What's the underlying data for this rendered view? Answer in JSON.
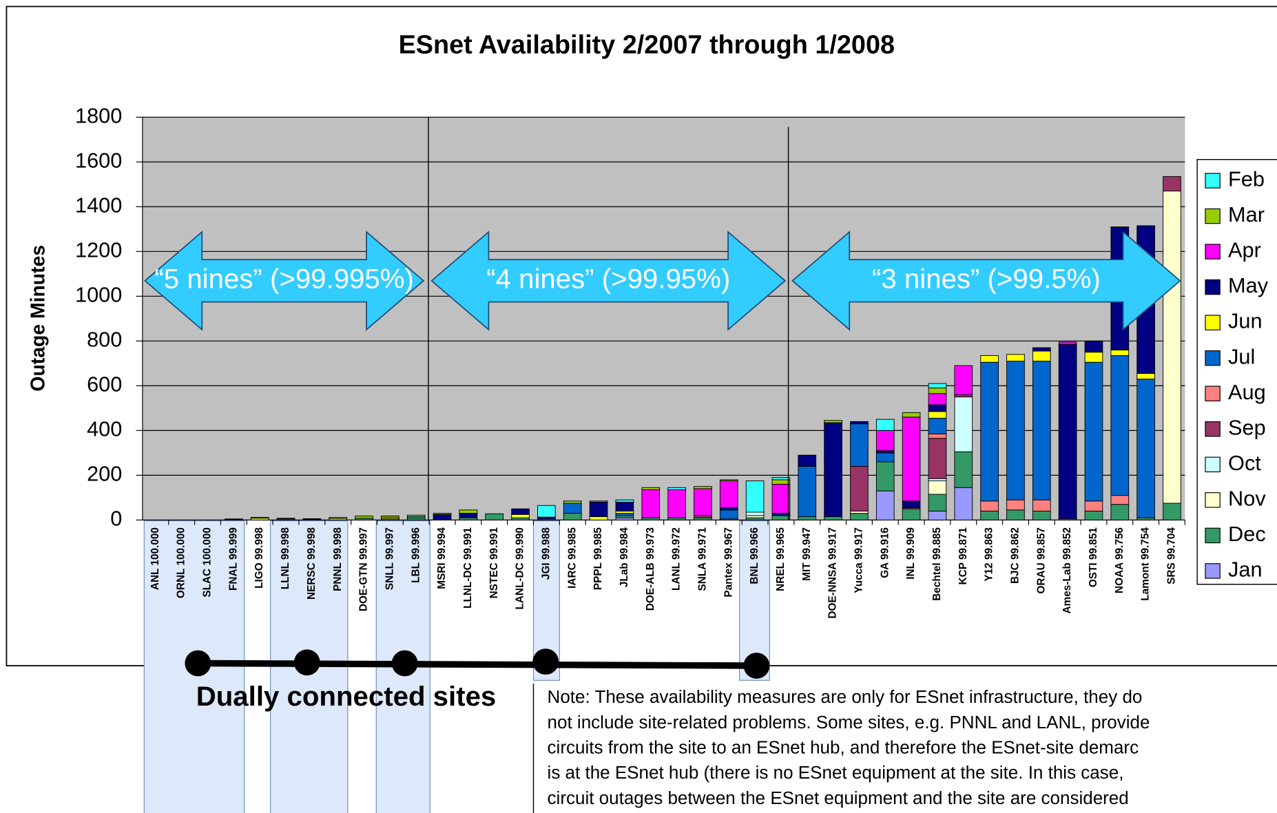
{
  "chart_data": {
    "type": "stacked_bar",
    "title": "ESnet Availability 2/2007 through 1/2008",
    "ylabel": "Outage Minutes",
    "ylim": [
      0,
      1800
    ],
    "yticks": [
      0,
      200,
      400,
      600,
      800,
      1000,
      1200,
      1400,
      1600,
      1800
    ],
    "grid": true,
    "legend": "right",
    "categories": [
      "ANL 100.000",
      "ORNL 100.000",
      "SLAC 100.000",
      "FNAL 99.999",
      "LIGO 99.998",
      "LLNL 99.998",
      "NERSC 99.998",
      "PNNL 99.998",
      "DOE-GTN 99.997",
      "SNLL 99.997",
      "LBL 99.996",
      "MSRI 99.994",
      "LLNL-DC 99.991",
      "NSTEC 99.991",
      "LANL-DC 99.990",
      "JGI 99.988",
      "IARC 99.985",
      "PPPL 99.985",
      "JLab 99.984",
      "DOE-ALB 99.973",
      "LANL 99.972",
      "SNLA 99.971",
      "Pantex 99.967",
      "BNL 99.966",
      "NREL 99.965",
      "MIT 99.947",
      "DOE-NNSA 99.917",
      "Yucca 99.917",
      "GA 99.916",
      "INL 99.909",
      "Bechtel 99.885",
      "KCP 99.871",
      "Y12 99.863",
      "BJC 99.862",
      "ORAU 99.857",
      "Ames-Lab 99.852",
      "OSTI 99.851",
      "NOAA 99.756",
      "Lamont 99.754",
      "SRS 99.704"
    ],
    "series": [
      {
        "name": "Feb",
        "color": "#33ffff",
        "values": [
          0,
          0,
          0,
          0,
          0,
          0,
          0,
          0,
          0,
          0,
          6,
          0,
          0,
          0,
          0,
          52,
          0,
          0,
          10,
          0,
          10,
          0,
          0,
          140,
          10,
          0,
          0,
          0,
          50,
          0,
          20,
          0,
          0,
          0,
          0,
          0,
          0,
          0,
          0,
          0
        ]
      },
      {
        "name": "Mar",
        "color": "#99cc00",
        "values": [
          0,
          0,
          0,
          3,
          4,
          3,
          3,
          6,
          10,
          6,
          6,
          5,
          15,
          0,
          0,
          0,
          10,
          5,
          0,
          10,
          0,
          10,
          5,
          0,
          20,
          0,
          10,
          0,
          0,
          20,
          25,
          0,
          0,
          0,
          0,
          0,
          0,
          0,
          0,
          0
        ]
      },
      {
        "name": "Apr",
        "color": "#ff00ff",
        "values": [
          0,
          0,
          0,
          0,
          0,
          0,
          0,
          0,
          0,
          0,
          0,
          0,
          0,
          0,
          0,
          0,
          0,
          0,
          0,
          125,
          125,
          120,
          120,
          0,
          130,
          0,
          0,
          0,
          90,
          375,
          50,
          130,
          0,
          0,
          0,
          10,
          0,
          0,
          0,
          0
        ]
      },
      {
        "name": "May",
        "color": "#000080",
        "values": [
          0,
          0,
          0,
          0,
          0,
          0,
          3,
          0,
          0,
          0,
          0,
          25,
          20,
          0,
          25,
          8,
          0,
          65,
          40,
          0,
          0,
          0,
          10,
          0,
          10,
          50,
          420,
          10,
          10,
          30,
          30,
          0,
          0,
          0,
          15,
          780,
          50,
          550,
          660,
          0
        ]
      },
      {
        "name": "Jun",
        "color": "#ffff00",
        "values": [
          0,
          0,
          0,
          0,
          8,
          0,
          0,
          6,
          0,
          6,
          0,
          0,
          0,
          0,
          15,
          0,
          0,
          15,
          10,
          0,
          0,
          0,
          0,
          0,
          0,
          0,
          0,
          0,
          0,
          0,
          30,
          0,
          30,
          30,
          45,
          0,
          45,
          25,
          25,
          0
        ]
      },
      {
        "name": "Jul",
        "color": "#0066cc",
        "values": [
          0,
          0,
          0,
          0,
          0,
          0,
          0,
          0,
          0,
          0,
          0,
          0,
          0,
          0,
          0,
          0,
          45,
          0,
          10,
          0,
          0,
          0,
          40,
          0,
          0,
          225,
          0,
          190,
          40,
          0,
          70,
          0,
          620,
          620,
          620,
          0,
          620,
          625,
          620,
          0
        ]
      },
      {
        "name": "Aug",
        "color": "#ff8080",
        "values": [
          0,
          0,
          0,
          0,
          0,
          0,
          0,
          0,
          0,
          0,
          0,
          0,
          0,
          0,
          0,
          0,
          0,
          0,
          0,
          0,
          0,
          0,
          0,
          0,
          0,
          0,
          0,
          0,
          0,
          0,
          20,
          0,
          45,
          45,
          50,
          5,
          45,
          40,
          0,
          0
        ]
      },
      {
        "name": "Sep",
        "color": "#993366",
        "values": [
          0,
          0,
          0,
          0,
          0,
          0,
          0,
          0,
          0,
          0,
          0,
          0,
          0,
          0,
          0,
          0,
          0,
          0,
          0,
          0,
          0,
          10,
          0,
          0,
          0,
          0,
          0,
          200,
          0,
          5,
          180,
          10,
          0,
          0,
          0,
          0,
          0,
          0,
          0,
          65
        ]
      },
      {
        "name": "Oct",
        "color": "#ccffff",
        "values": [
          0,
          0,
          0,
          0,
          0,
          0,
          0,
          0,
          0,
          0,
          0,
          0,
          0,
          0,
          0,
          0,
          0,
          0,
          0,
          0,
          0,
          0,
          0,
          15,
          0,
          0,
          0,
          0,
          0,
          0,
          10,
          245,
          0,
          0,
          0,
          0,
          0,
          0,
          0,
          0
        ]
      },
      {
        "name": "Nov",
        "color": "#ffffcc",
        "values": [
          0,
          0,
          0,
          0,
          0,
          0,
          0,
          0,
          0,
          0,
          0,
          0,
          0,
          0,
          0,
          0,
          0,
          0,
          0,
          0,
          0,
          0,
          0,
          10,
          0,
          0,
          0,
          10,
          0,
          0,
          60,
          0,
          0,
          0,
          0,
          0,
          0,
          0,
          0,
          1395
        ]
      },
      {
        "name": "Dec",
        "color": "#339966",
        "values": [
          0,
          0,
          0,
          2,
          0,
          5,
          0,
          0,
          8,
          6,
          10,
          0,
          10,
          28,
          10,
          5,
          30,
          0,
          10,
          10,
          10,
          10,
          5,
          10,
          20,
          15,
          15,
          30,
          130,
          50,
          75,
          160,
          40,
          45,
          40,
          0,
          40,
          70,
          10,
          75
        ]
      },
      {
        "name": "Jan",
        "color": "#9999ff",
        "values": [
          0,
          0,
          0,
          0,
          0,
          0,
          0,
          0,
          0,
          0,
          0,
          0,
          0,
          0,
          0,
          0,
          0,
          0,
          10,
          0,
          0,
          0,
          0,
          0,
          0,
          0,
          0,
          0,
          130,
          0,
          40,
          145,
          0,
          0,
          0,
          0,
          0,
          0,
          0,
          0
        ]
      }
    ],
    "annotations": [
      "“5 nines” (>99.995%)",
      "“4 nines” (>99.95%)",
      "“3 nines” (>99.5%)"
    ],
    "group_label": "Dually connected sites",
    "note": [
      "Note: These availability measures are only for ESnet infrastructure, they do",
      "not include site-related problems. Some sites, e.g. PNNL and LANL, provide",
      "circuits from the site to an ESnet hub, and therefore the ESnet-site demarc",
      "is at the ESnet hub (there is no ESnet equipment at the site. In this case,",
      "circuit outages between the ESnet equipment and the site are considered"
    ]
  }
}
